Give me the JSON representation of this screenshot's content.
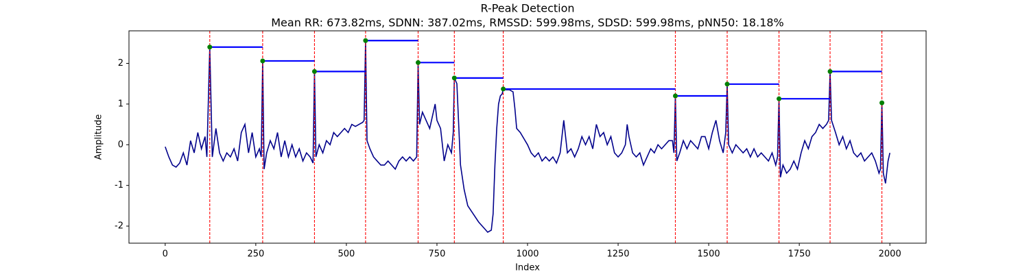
{
  "chart_data": {
    "type": "line",
    "title": "R-Peak Detection",
    "subtitle": "Mean RR: 673.82ms, SDNN: 387.02ms, RMSSD: 599.98ms, SDSD: 599.98ms, pNN50: 18.18%",
    "xlabel": "Index",
    "ylabel": "Amplitude",
    "xlim": [
      -100,
      2100
    ],
    "xticks": [
      0,
      250,
      500,
      750,
      1000,
      1250,
      1500,
      1750,
      2000
    ],
    "ylim": [
      -2.42,
      2.8
    ],
    "yticks": [
      -2,
      -1,
      0,
      1,
      2
    ],
    "color": "#00008b",
    "x": [
      0,
      10,
      20,
      30,
      40,
      50,
      60,
      70,
      80,
      90,
      100,
      110,
      115,
      123,
      130,
      140,
      150,
      160,
      170,
      180,
      190,
      200,
      210,
      220,
      230,
      240,
      250,
      260,
      265,
      269,
      273,
      280,
      290,
      300,
      310,
      320,
      330,
      340,
      350,
      360,
      370,
      380,
      390,
      400,
      408,
      412,
      416,
      425,
      435,
      445,
      455,
      465,
      475,
      485,
      495,
      505,
      515,
      525,
      535,
      545,
      549,
      553,
      557,
      565,
      575,
      585,
      595,
      605,
      615,
      625,
      635,
      645,
      655,
      665,
      675,
      685,
      694,
      698,
      702,
      710,
      720,
      730,
      740,
      745,
      750,
      760,
      770,
      780,
      790,
      795,
      798,
      805,
      815,
      825,
      835,
      850,
      865,
      880,
      890,
      900,
      905,
      910,
      915,
      920,
      925,
      930,
      933,
      940,
      950,
      960,
      965,
      970,
      980,
      990,
      1000,
      1010,
      1020,
      1030,
      1040,
      1050,
      1060,
      1070,
      1080,
      1090,
      1100,
      1110,
      1120,
      1130,
      1140,
      1150,
      1160,
      1170,
      1180,
      1190,
      1200,
      1210,
      1220,
      1230,
      1240,
      1250,
      1260,
      1270,
      1275,
      1280,
      1290,
      1300,
      1310,
      1320,
      1330,
      1340,
      1350,
      1360,
      1370,
      1380,
      1390,
      1400,
      1404,
      1408,
      1412,
      1420,
      1430,
      1440,
      1450,
      1460,
      1470,
      1480,
      1490,
      1500,
      1510,
      1520,
      1530,
      1540,
      1547,
      1551,
      1555,
      1565,
      1575,
      1585,
      1595,
      1605,
      1615,
      1625,
      1635,
      1645,
      1655,
      1665,
      1675,
      1685,
      1690,
      1694,
      1698,
      1705,
      1715,
      1725,
      1735,
      1745,
      1755,
      1765,
      1775,
      1785,
      1795,
      1805,
      1815,
      1825,
      1831,
      1835,
      1839,
      1850,
      1860,
      1870,
      1880,
      1890,
      1900,
      1910,
      1920,
      1930,
      1940,
      1950,
      1960,
      1970,
      1974,
      1978,
      1982,
      1988,
      1995,
      2000
    ],
    "values": [
      -0.05,
      -0.3,
      -0.5,
      -0.55,
      -0.45,
      -0.2,
      -0.5,
      0.1,
      -0.2,
      0.3,
      -0.1,
      0.2,
      -0.3,
      2.4,
      -0.3,
      0.4,
      -0.2,
      -0.4,
      -0.2,
      -0.3,
      -0.1,
      -0.4,
      0.3,
      0.5,
      -0.2,
      0.3,
      -0.3,
      -0.1,
      -0.3,
      2.06,
      -0.6,
      -0.2,
      0.1,
      -0.1,
      0.3,
      -0.3,
      0.1,
      -0.3,
      0.0,
      -0.3,
      -0.1,
      -0.4,
      -0.2,
      -0.3,
      -0.45,
      1.8,
      -0.3,
      0.0,
      -0.2,
      0.1,
      0.0,
      0.3,
      0.2,
      0.3,
      0.4,
      0.3,
      0.5,
      0.45,
      0.5,
      0.55,
      0.6,
      2.56,
      0.1,
      -0.1,
      -0.3,
      -0.4,
      -0.5,
      -0.5,
      -0.4,
      -0.5,
      -0.6,
      -0.4,
      -0.3,
      -0.4,
      -0.3,
      -0.4,
      -0.3,
      2.02,
      0.5,
      0.8,
      0.6,
      0.4,
      0.8,
      1.0,
      0.6,
      0.4,
      -0.4,
      0.0,
      -0.2,
      0.3,
      1.64,
      1.5,
      -0.5,
      -1.1,
      -1.5,
      -1.7,
      -1.9,
      -2.05,
      -2.15,
      -2.1,
      -1.7,
      -0.5,
      0.4,
      1.0,
      1.2,
      1.25,
      1.37,
      1.35,
      1.35,
      1.3,
      0.9,
      0.4,
      0.3,
      0.15,
      0.0,
      -0.2,
      -0.3,
      -0.2,
      -0.4,
      -0.3,
      -0.4,
      -0.3,
      -0.45,
      -0.2,
      0.6,
      -0.2,
      -0.1,
      -0.3,
      -0.1,
      0.2,
      0.0,
      0.2,
      -0.1,
      0.5,
      0.2,
      0.3,
      0.0,
      0.2,
      -0.2,
      -0.3,
      -0.2,
      0.0,
      0.5,
      0.2,
      -0.2,
      -0.3,
      -0.2,
      -0.5,
      -0.3,
      -0.1,
      -0.2,
      0.0,
      -0.1,
      0.0,
      0.1,
      0.1,
      -0.2,
      1.2,
      -0.4,
      -0.2,
      0.1,
      -0.1,
      0.1,
      0.0,
      -0.1,
      0.2,
      0.2,
      -0.1,
      0.3,
      0.6,
      0.1,
      -0.2,
      0.3,
      1.49,
      0.0,
      -0.2,
      0.0,
      -0.1,
      -0.2,
      -0.1,
      -0.3,
      -0.1,
      -0.3,
      -0.2,
      -0.3,
      -0.4,
      -0.2,
      -0.5,
      -0.3,
      1.13,
      -0.8,
      -0.5,
      -0.7,
      -0.6,
      -0.4,
      -0.6,
      -0.2,
      0.1,
      -0.1,
      0.2,
      0.3,
      0.5,
      0.4,
      0.5,
      0.6,
      1.8,
      0.6,
      0.3,
      0.0,
      0.2,
      -0.1,
      0.1,
      -0.2,
      -0.3,
      -0.2,
      -0.4,
      -0.3,
      -0.2,
      -0.4,
      -0.7,
      -0.6,
      1.03,
      -0.7,
      -0.95,
      -0.4,
      -0.2
    ],
    "peaks": {
      "x": [
        123,
        269,
        412,
        553,
        698,
        798,
        933,
        1408,
        1551,
        1694,
        1835,
        1978
      ],
      "values": [
        2.4,
        2.06,
        1.8,
        2.56,
        2.02,
        1.64,
        1.37,
        1.2,
        1.49,
        1.13,
        1.8,
        1.03
      ],
      "color": "green",
      "line_color": "red",
      "interval_color": "blue"
    }
  }
}
